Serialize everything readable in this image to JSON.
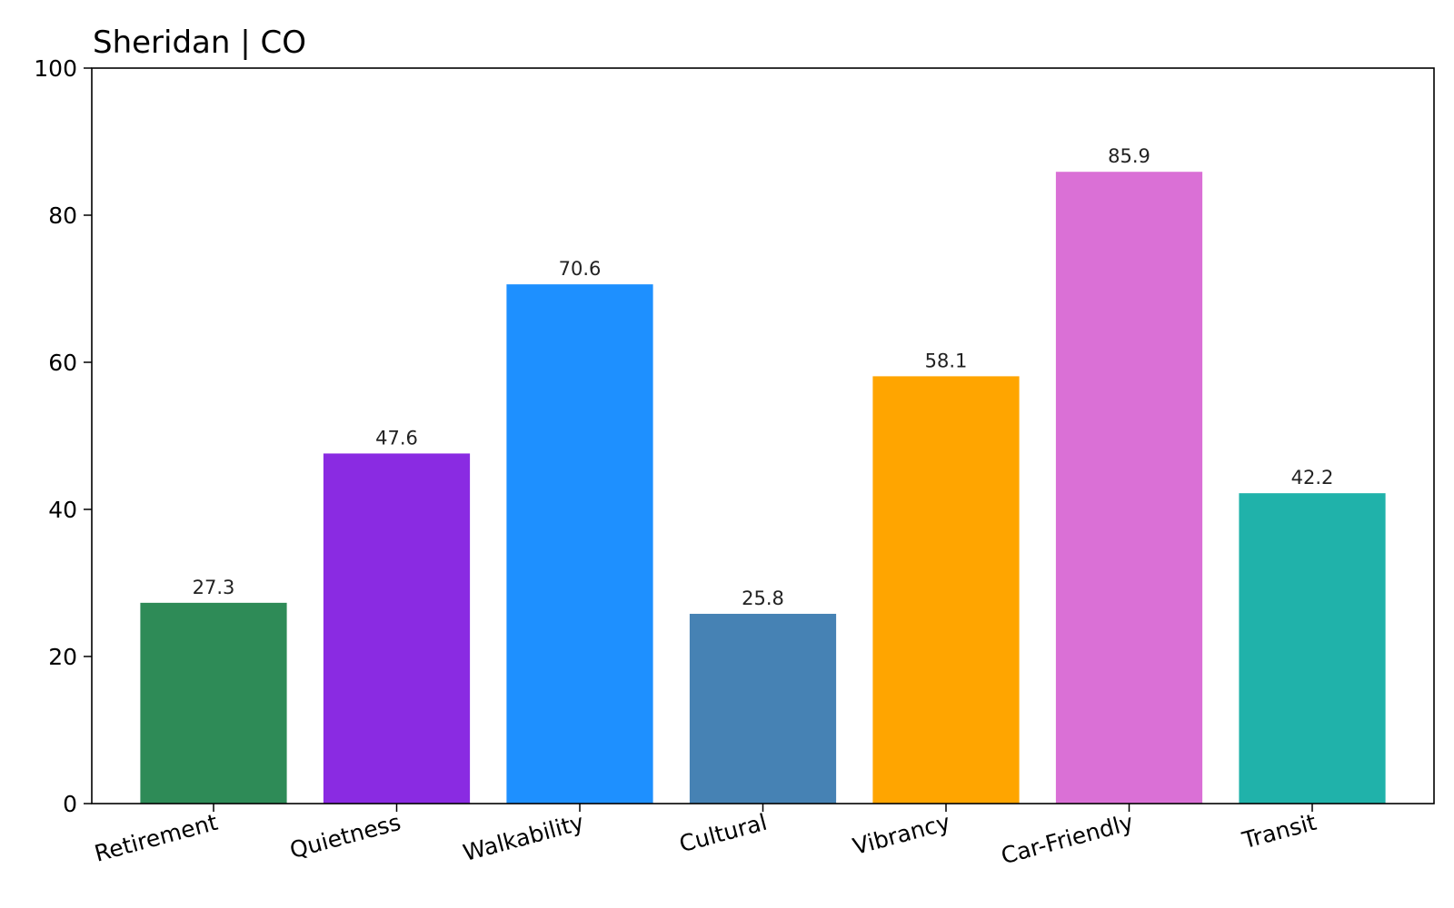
{
  "chart_data": {
    "type": "bar",
    "title": "Sheridan | CO",
    "xlabel": "",
    "ylabel": "",
    "categories": [
      "Retirement",
      "Quietness",
      "Walkability",
      "Cultural",
      "Vibrancy",
      "Car-Friendly",
      "Transit"
    ],
    "values": [
      27.3,
      47.6,
      70.6,
      25.8,
      58.1,
      85.9,
      42.2
    ],
    "value_labels": [
      "27.3",
      "47.6",
      "70.6",
      "25.8",
      "58.1",
      "85.9",
      "42.2"
    ],
    "colors": [
      "#2e8b57",
      "#8a2be2",
      "#1e90ff",
      "#4682b4",
      "#ffa500",
      "#da70d6",
      "#20b2aa"
    ],
    "ylim": [
      0,
      100
    ],
    "yticks": [
      0,
      20,
      40,
      60,
      80,
      100
    ],
    "ytick_labels": [
      "0",
      "20",
      "40",
      "60",
      "80",
      "100"
    ],
    "grid": false,
    "legend": false
  }
}
